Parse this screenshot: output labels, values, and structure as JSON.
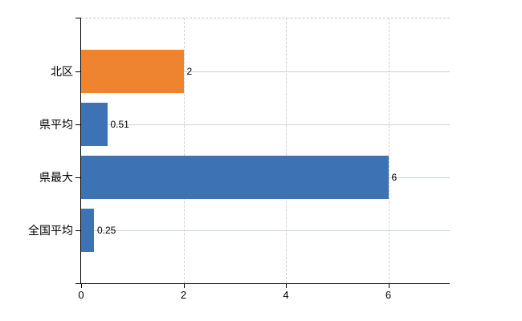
{
  "chart_data": {
    "type": "bar",
    "orientation": "horizontal",
    "title": "",
    "categories": [
      "北区",
      "県平均",
      "県最大",
      "全国平均"
    ],
    "values": [
      2,
      0.51,
      6,
      0.25
    ],
    "value_labels": [
      "2",
      "0.51",
      "6",
      "0.25"
    ],
    "bar_colors": [
      "#ee8430",
      "#3d72b5",
      "#3d72b5",
      "#3d72b5"
    ],
    "xlabel": "",
    "ylabel": "",
    "xlim": [
      0,
      7.2
    ],
    "x_ticks": [
      0,
      2,
      4,
      6
    ],
    "x_tick_labels": [
      "0",
      "2",
      "4",
      "6"
    ],
    "grid": {
      "vertical_style": "dashed",
      "horizontal_style": "solid",
      "plot_top_border": "dashed"
    },
    "legend": "none"
  },
  "colors": {
    "bar_blue": "#3d72b5",
    "bar_orange": "#ee8430",
    "axis": "#000000",
    "gridline_vertical": "#d2d2d2",
    "gridline_horizontal": "#ccd4cc",
    "plot_border": "#c4c4c4",
    "background": "#ffffff",
    "text": "#000000"
  }
}
